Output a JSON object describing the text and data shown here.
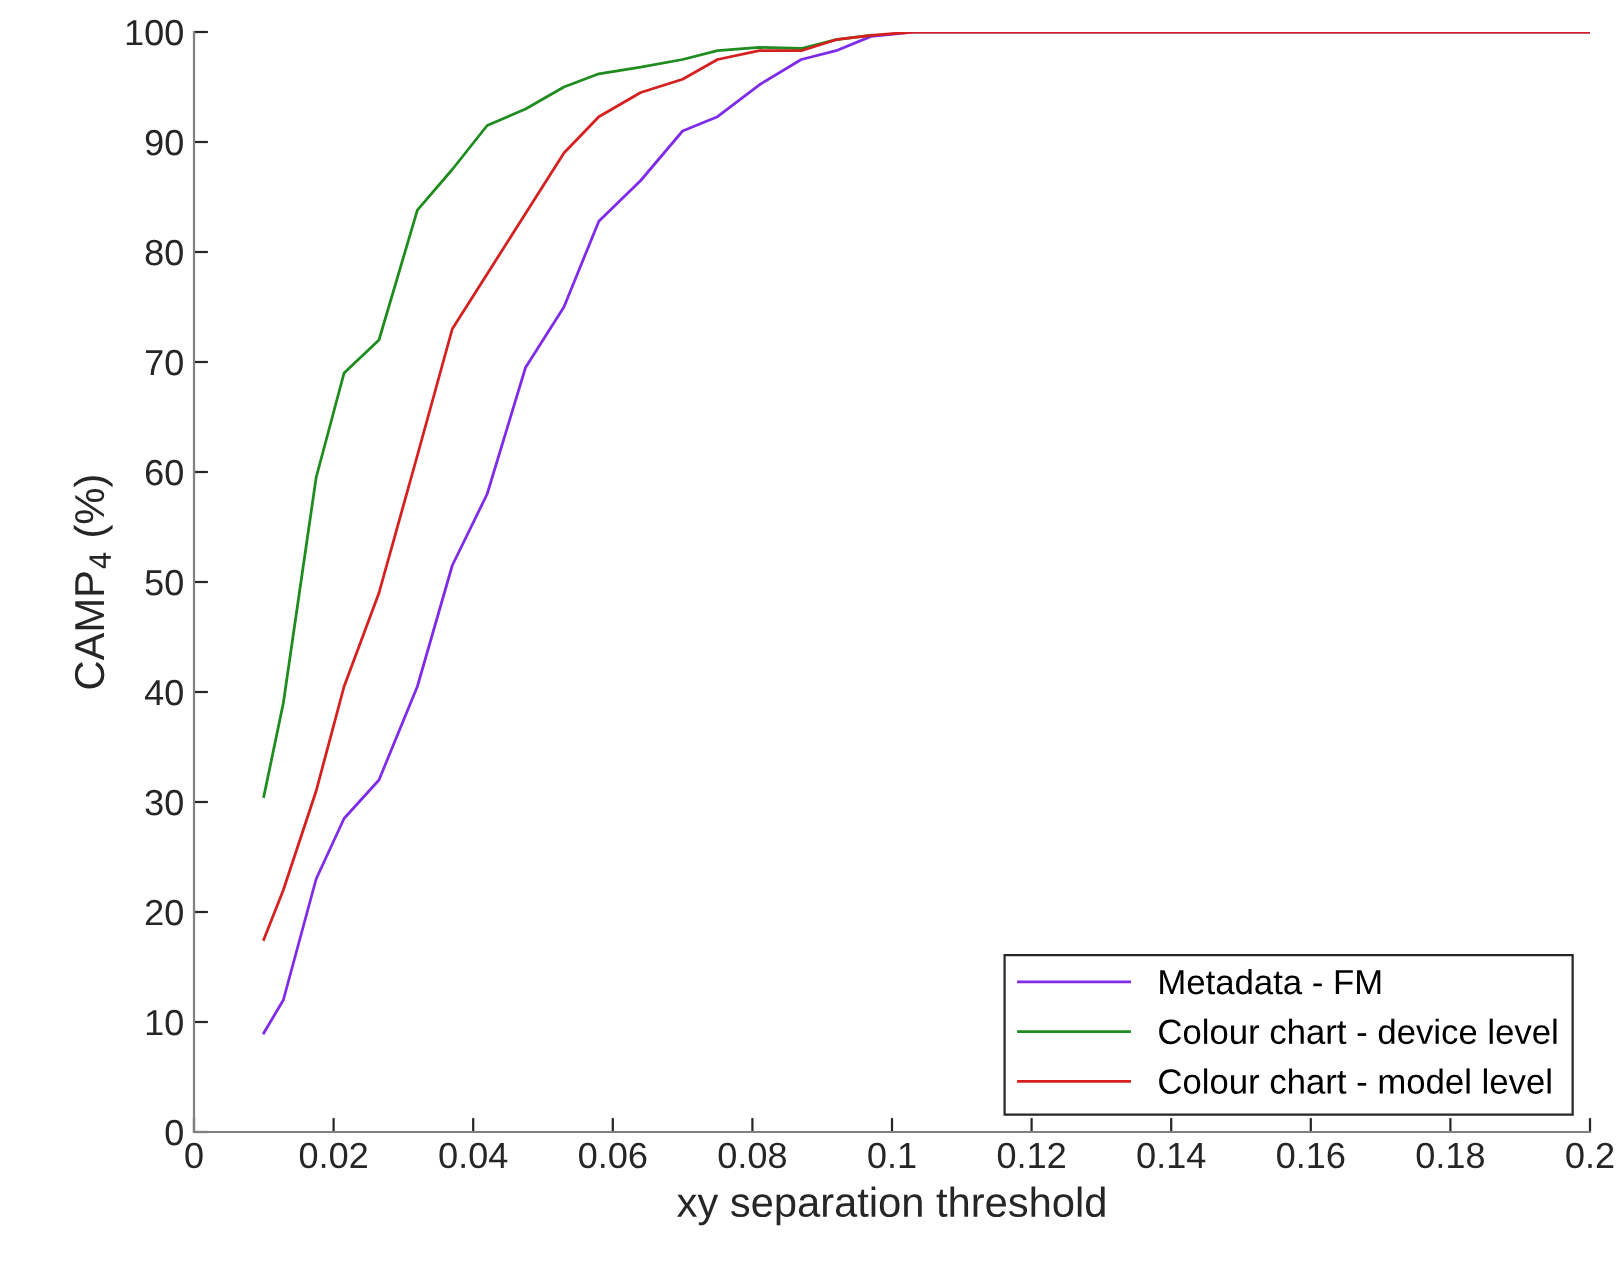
{
  "chart_data": {
    "type": "line",
    "xlabel": "xy separation threshold",
    "ylabel": "CAMP$_{4}$ (%)",
    "x": [
      0.01,
      0.0128,
      0.0175,
      0.0215,
      0.0265,
      0.032,
      0.037,
      0.042,
      0.0475,
      0.053,
      0.058,
      0.064,
      0.07,
      0.075,
      0.081,
      0.087,
      0.092,
      0.097,
      0.103,
      0.2
    ],
    "series": [
      {
        "name": "Metadata - FM",
        "color": "#7f2bea",
        "values": [
          9,
          12,
          23,
          28.5,
          32,
          40.5,
          51.5,
          58,
          69.5,
          75,
          82.8,
          86.5,
          91,
          92.3,
          95.2,
          97.5,
          98.3,
          99.6,
          100,
          100
        ]
      },
      {
        "name": "Colour chart - device level",
        "color": "#1f8c1f",
        "values": [
          30.5,
          39,
          59.5,
          69,
          72,
          83.8,
          87.5,
          91.5,
          93,
          95,
          96.2,
          96.8,
          97.5,
          98.3,
          98.6,
          98.5,
          99.3,
          99.7,
          null,
          null
        ]
      },
      {
        "name": "Colour chart - model level",
        "color": "#d62020",
        "values": [
          17.5,
          22,
          31,
          40.5,
          49,
          61.5,
          73,
          78,
          83.5,
          89,
          92.3,
          94.5,
          95.7,
          97.5,
          98.3,
          98.3,
          99.3,
          99.7,
          100,
          100
        ]
      }
    ],
    "xlim": [
      0,
      0.2
    ],
    "xticks": [
      0,
      0.02,
      0.04,
      0.06,
      0.08,
      0.1,
      0.12,
      0.14,
      0.16,
      0.18,
      0.2
    ],
    "ylim": [
      0,
      100
    ],
    "yticks": [
      0,
      10,
      20,
      30,
      40,
      50,
      60,
      70,
      80,
      90,
      100
    ],
    "grid": false,
    "legend": "bottom right",
    "marker": "none",
    "line_style": "solid"
  }
}
